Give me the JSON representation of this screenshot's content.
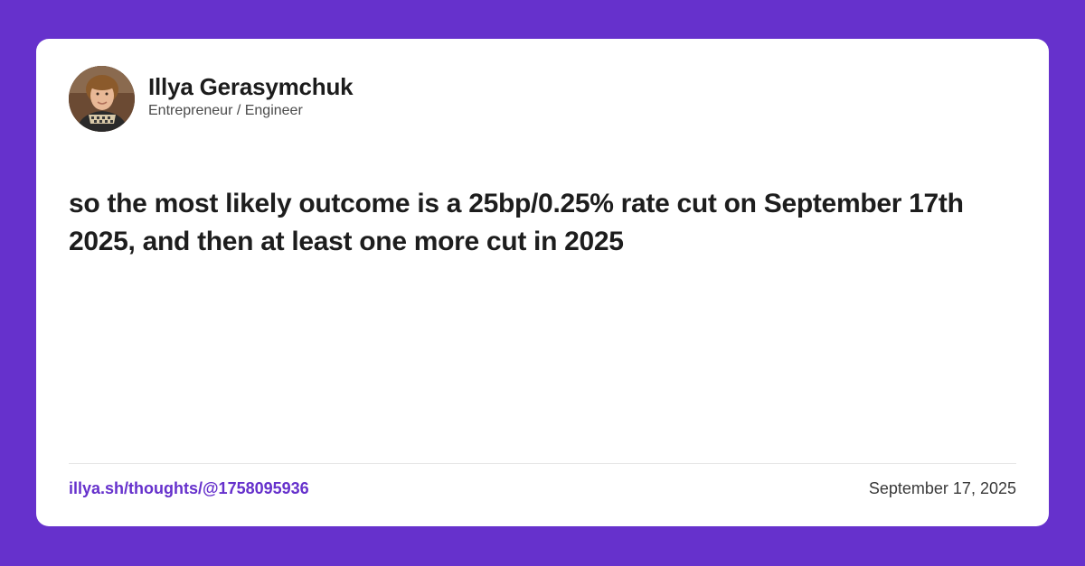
{
  "author": {
    "name": "Illya Gerasymchuk",
    "role": "Entrepreneur / Engineer",
    "avatar_icon": "user-avatar-photo"
  },
  "post": {
    "text": "so the most likely outcome is a 25bp/0.25% rate cut on September 17th 2025, and then at least one more cut in 2025"
  },
  "footer": {
    "link": "illya.sh/thoughts/@1758095936",
    "date": "September 17, 2025"
  },
  "colors": {
    "background": "#6631cc",
    "card": "#ffffff",
    "accent": "#6631cc"
  }
}
